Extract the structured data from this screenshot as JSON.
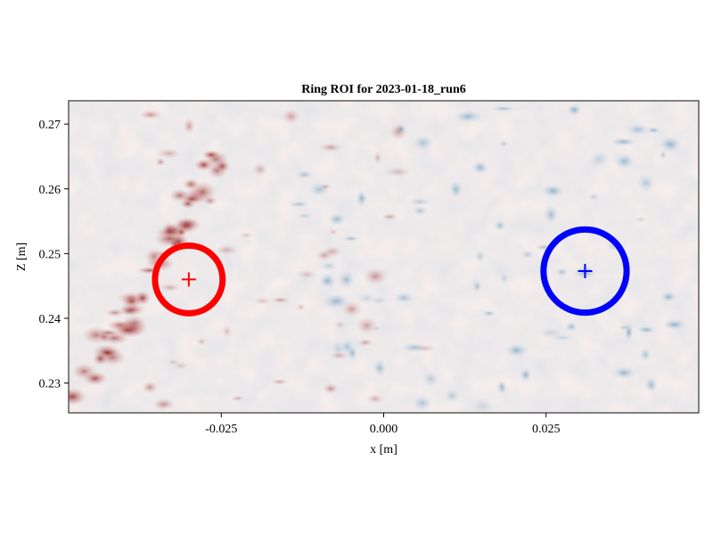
{
  "chart_data": {
    "type": "heatmap",
    "title": "Ring ROI for 2023-01-18_run6",
    "xlabel": "x [m]",
    "ylabel": "Z [m]",
    "xlim": [
      -0.0485,
      0.0485
    ],
    "ylim": [
      0.2254,
      0.2736
    ],
    "xticks": [
      {
        "value": -0.025,
        "label": "-0.025"
      },
      {
        "value": 0.0,
        "label": "0.000"
      },
      {
        "value": 0.025,
        "label": "0.025"
      }
    ],
    "yticks": [
      {
        "value": 0.23,
        "label": "0.23"
      },
      {
        "value": 0.24,
        "label": "0.24"
      },
      {
        "value": 0.25,
        "label": "0.25"
      },
      {
        "value": 0.26,
        "label": "0.26"
      },
      {
        "value": 0.27,
        "label": "0.27"
      }
    ],
    "colormap": "diverging red-white-blue",
    "grid": false,
    "rings": [
      {
        "name": "",
        "center": [
          -0.03,
          0.246
        ],
        "radius": 0.0052,
        "color": "#ff0000",
        "marker": "+"
      },
      {
        "name": "",
        "center": [
          0.031,
          0.2473
        ],
        "radius": 0.0064,
        "color": "#0000ff",
        "marker": "+"
      }
    ]
  }
}
